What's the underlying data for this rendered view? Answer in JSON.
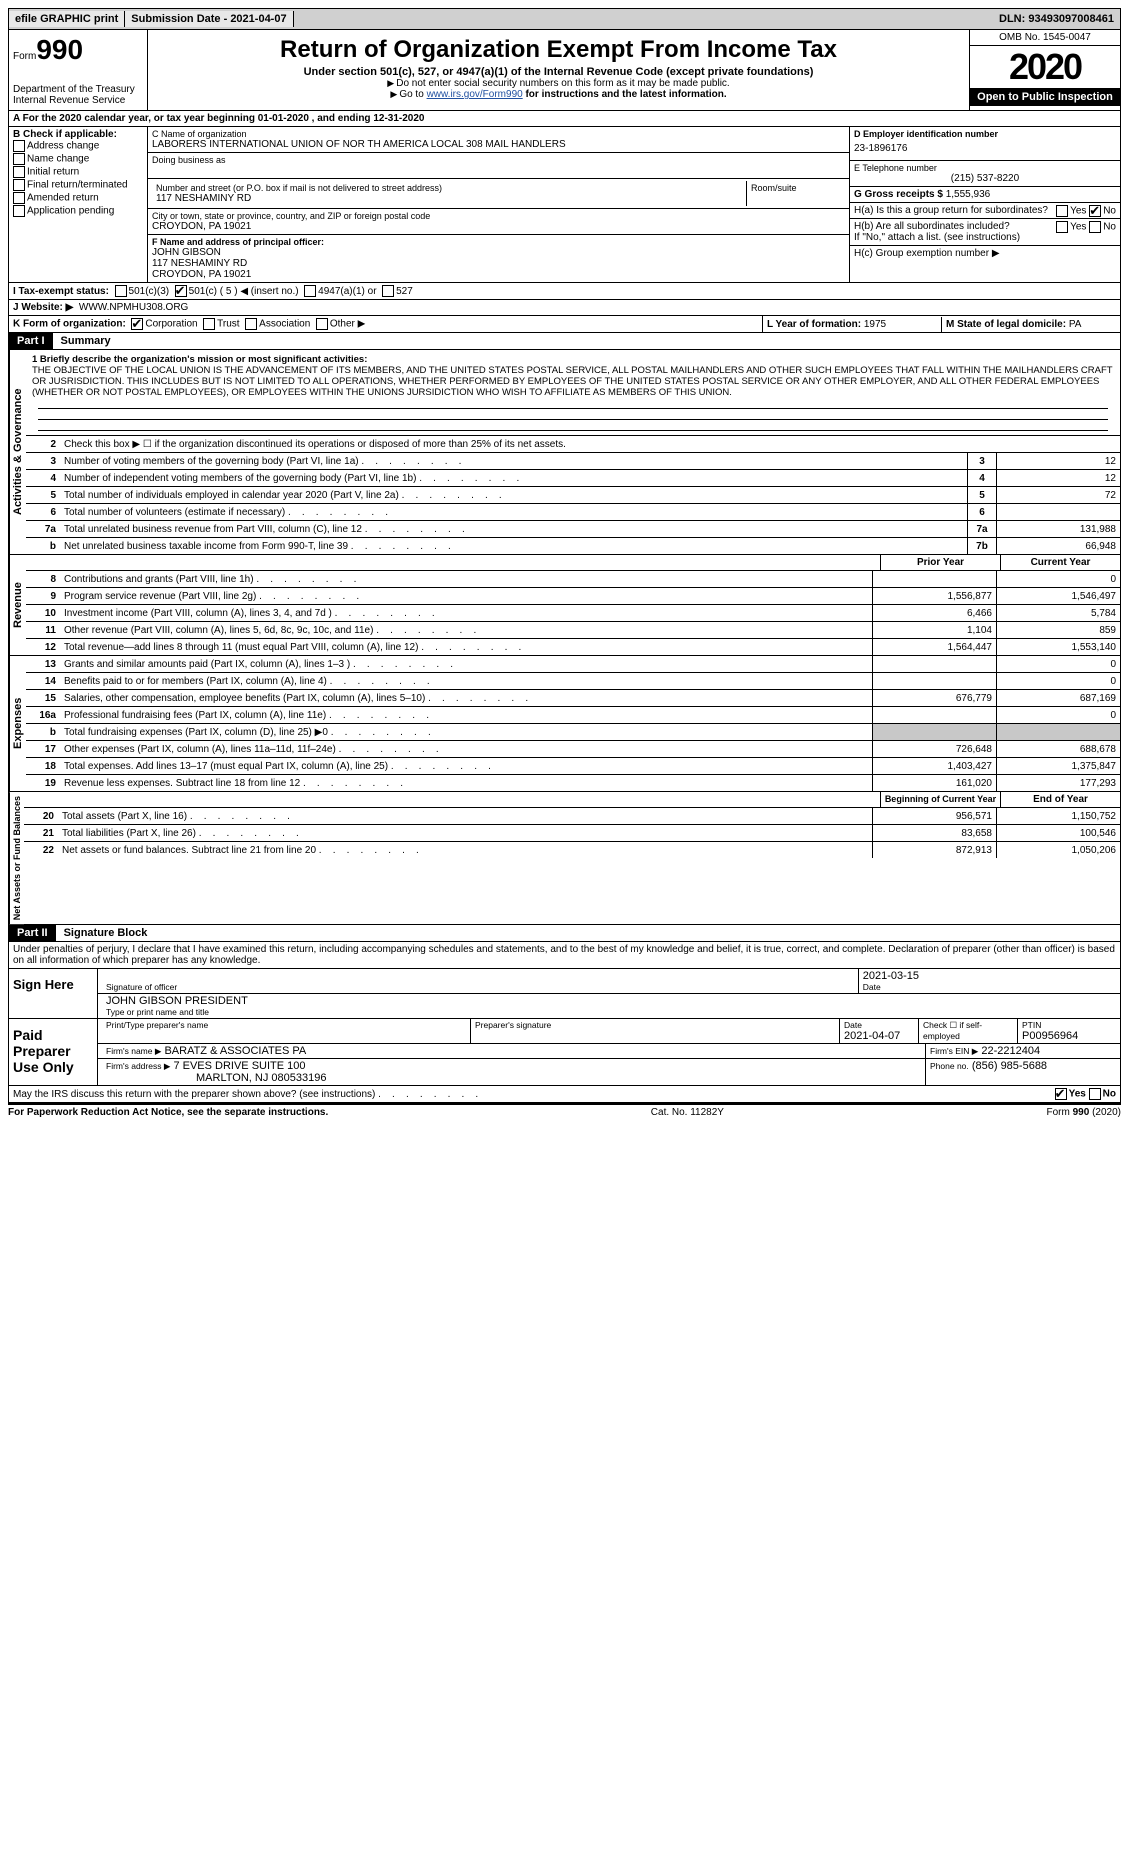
{
  "topbar": {
    "efile": "efile GRAPHIC print",
    "submission": "Submission Date - 2021-04-07",
    "dln": "DLN: 93493097008461"
  },
  "header": {
    "form_word": "Form",
    "form_num": "990",
    "dept": "Department of the Treasury",
    "irs": "Internal Revenue Service",
    "title": "Return of Organization Exempt From Income Tax",
    "subtitle": "Under section 501(c), 527, or 4947(a)(1) of the Internal Revenue Code (except private foundations)",
    "note1": "Do not enter social security numbers on this form as it may be made public.",
    "note2_pre": "Go to ",
    "note2_link": "www.irs.gov/Form990",
    "note2_post": " for instructions and the latest information.",
    "omb": "OMB No. 1545-0047",
    "year": "2020",
    "open": "Open to Public Inspection"
  },
  "rowA": "A   For the 2020 calendar year, or tax year beginning 01-01-2020   , and ending 12-31-2020",
  "colB": {
    "title": "B Check if applicable:",
    "items": [
      "Address change",
      "Name change",
      "Initial return",
      "Final return/terminated",
      "Amended return",
      "Application pending"
    ]
  },
  "colC": {
    "name_lbl": "C Name of organization",
    "name": "LABORERS INTERNATIONAL UNION OF NOR TH AMERICA LOCAL 308 MAIL HANDLERS",
    "dba_lbl": "Doing business as",
    "addr_lbl": "Number and street (or P.O. box if mail is not delivered to street address)",
    "addr": "117 NESHAMINY RD",
    "room_lbl": "Room/suite",
    "city_lbl": "City or town, state or province, country, and ZIP or foreign postal code",
    "city": "CROYDON, PA  19021",
    "officer_lbl": "F  Name and address of principal officer:",
    "officer": "JOHN GIBSON",
    "officer_addr1": "117 NESHAMINY RD",
    "officer_addr2": "CROYDON, PA  19021"
  },
  "colD": {
    "ein_lbl": "D Employer identification number",
    "ein": "23-1896176",
    "phone_lbl": "E Telephone number",
    "phone": "(215) 537-8220",
    "gross_lbl": "G Gross receipts $",
    "gross": "1,555,936"
  },
  "colH": {
    "ha": "H(a)  Is this a group return for subordinates?",
    "hb": "H(b)  Are all subordinates included?",
    "hb_note": "If \"No,\" attach a list. (see instructions)",
    "hc": "H(c)  Group exemption number ▶"
  },
  "rowI": {
    "lbl": "I   Tax-exempt status:",
    "opts": [
      "501(c)(3)",
      "501(c) ( 5 ) ◀ (insert no.)",
      "4947(a)(1) or",
      "527"
    ]
  },
  "rowJ": {
    "lbl": "J   Website: ▶",
    "val": "WWW.NPMHU308.ORG"
  },
  "rowK": {
    "lbl": "K Form of organization:",
    "opts": [
      "Corporation",
      "Trust",
      "Association",
      "Other ▶"
    ]
  },
  "rowL": {
    "lbl": "L Year of formation:",
    "val": "1975"
  },
  "rowM": {
    "lbl": "M State of legal domicile:",
    "val": "PA"
  },
  "part1": {
    "hdr": "Part I",
    "title": "Summary"
  },
  "mission_lbl": "1   Briefly describe the organization's mission or most significant activities:",
  "mission": "THE OBJECTIVE OF THE LOCAL UNION IS THE ADVANCEMENT OF ITS MEMBERS, AND THE UNITED STATES POSTAL SERVICE, ALL POSTAL MAILHANDLERS AND OTHER SUCH EMPLOYEES THAT FALL WITHIN THE MAILHANDLERS CRAFT OR JUSRISDICTION. THIS INCLUDES BUT IS NOT LIMITED TO ALL OPERATIONS, WHETHER PERFORMED BY EMPLOYEES OF THE UNITED STATES POSTAL SERVICE OR ANY OTHER EMPLOYER, AND ALL OTHER FEDERAL EMPLOYEES (WHETHER OR NOT POSTAL EMPLOYEES), OR EMPLOYEES WITHIN THE UNIONS JURSIDICTION WHO WISH TO AFFILIATE AS MEMBERS OF THIS UNION.",
  "line2": "Check this box ▶ ☐ if the organization discontinued its operations or disposed of more than 25% of its net assets.",
  "vert": {
    "act": "Activities & Governance",
    "rev": "Revenue",
    "exp": "Expenses",
    "net": "Net Assets or Fund Balances"
  },
  "gov_lines": [
    {
      "n": "3",
      "d": "Number of voting members of the governing body (Part VI, line 1a)",
      "b": "3",
      "v": "12"
    },
    {
      "n": "4",
      "d": "Number of independent voting members of the governing body (Part VI, line 1b)",
      "b": "4",
      "v": "12"
    },
    {
      "n": "5",
      "d": "Total number of individuals employed in calendar year 2020 (Part V, line 2a)",
      "b": "5",
      "v": "72"
    },
    {
      "n": "6",
      "d": "Total number of volunteers (estimate if necessary)",
      "b": "6",
      "v": ""
    },
    {
      "n": "7a",
      "d": "Total unrelated business revenue from Part VIII, column (C), line 12",
      "b": "7a",
      "v": "131,988"
    },
    {
      "n": "b",
      "d": "Net unrelated business taxable income from Form 990-T, line 39",
      "b": "7b",
      "v": "66,948"
    }
  ],
  "year_hdr": {
    "prior": "Prior Year",
    "current": "Current Year"
  },
  "rev_lines": [
    {
      "n": "8",
      "d": "Contributions and grants (Part VIII, line 1h)",
      "p": "",
      "c": "0"
    },
    {
      "n": "9",
      "d": "Program service revenue (Part VIII, line 2g)",
      "p": "1,556,877",
      "c": "1,546,497"
    },
    {
      "n": "10",
      "d": "Investment income (Part VIII, column (A), lines 3, 4, and 7d )",
      "p": "6,466",
      "c": "5,784"
    },
    {
      "n": "11",
      "d": "Other revenue (Part VIII, column (A), lines 5, 6d, 8c, 9c, 10c, and 11e)",
      "p": "1,104",
      "c": "859"
    },
    {
      "n": "12",
      "d": "Total revenue—add lines 8 through 11 (must equal Part VIII, column (A), line 12)",
      "p": "1,564,447",
      "c": "1,553,140"
    }
  ],
  "exp_lines": [
    {
      "n": "13",
      "d": "Grants and similar amounts paid (Part IX, column (A), lines 1–3 )",
      "p": "",
      "c": "0"
    },
    {
      "n": "14",
      "d": "Benefits paid to or for members (Part IX, column (A), line 4)",
      "p": "",
      "c": "0"
    },
    {
      "n": "15",
      "d": "Salaries, other compensation, employee benefits (Part IX, column (A), lines 5–10)",
      "p": "676,779",
      "c": "687,169"
    },
    {
      "n": "16a",
      "d": "Professional fundraising fees (Part IX, column (A), line 11e)",
      "p": "",
      "c": "0"
    },
    {
      "n": "b",
      "d": "Total fundraising expenses (Part IX, column (D), line 25) ▶0",
      "p": "shaded",
      "c": "shaded"
    },
    {
      "n": "17",
      "d": "Other expenses (Part IX, column (A), lines 11a–11d, 11f–24e)",
      "p": "726,648",
      "c": "688,678"
    },
    {
      "n": "18",
      "d": "Total expenses. Add lines 13–17 (must equal Part IX, column (A), line 25)",
      "p": "1,403,427",
      "c": "1,375,847"
    },
    {
      "n": "19",
      "d": "Revenue less expenses. Subtract line 18 from line 12",
      "p": "161,020",
      "c": "177,293"
    }
  ],
  "net_hdr": {
    "begin": "Beginning of Current Year",
    "end": "End of Year"
  },
  "net_lines": [
    {
      "n": "20",
      "d": "Total assets (Part X, line 16)",
      "p": "956,571",
      "c": "1,150,752"
    },
    {
      "n": "21",
      "d": "Total liabilities (Part X, line 26)",
      "p": "83,658",
      "c": "100,546"
    },
    {
      "n": "22",
      "d": "Net assets or fund balances. Subtract line 21 from line 20",
      "p": "872,913",
      "c": "1,050,206"
    }
  ],
  "part2": {
    "hdr": "Part II",
    "title": "Signature Block"
  },
  "perjury": "Under penalties of perjury, I declare that I have examined this return, including accompanying schedules and statements, and to the best of my knowledge and belief, it is true, correct, and complete. Declaration of preparer (other than officer) is based on all information of which preparer has any knowledge.",
  "sign": {
    "here": "Sign Here",
    "sig_lbl": "Signature of officer",
    "date_lbl": "Date",
    "date": "2021-03-15",
    "name": "JOHN GIBSON PRESIDENT",
    "name_lbl": "Type or print name and title"
  },
  "paid": {
    "title": "Paid Preparer Use Only",
    "h1": "Print/Type preparer's name",
    "h2": "Preparer's signature",
    "h3": "Date",
    "h3v": "2021-04-07",
    "h4": "Check ☐ if self-employed",
    "h5": "PTIN",
    "h5v": "P00956964",
    "firm_lbl": "Firm's name     ▶",
    "firm": "BARATZ & ASSOCIATES PA",
    "ein_lbl": "Firm's EIN ▶",
    "ein": "22-2212404",
    "addr_lbl": "Firm's address ▶",
    "addr1": "7 EVES DRIVE SUITE 100",
    "addr2": "MARLTON, NJ  080533196",
    "phone_lbl": "Phone no.",
    "phone": "(856) 985-5688"
  },
  "discuss": "May the IRS discuss this return with the preparer shown above? (see instructions)",
  "footer": {
    "left": "For Paperwork Reduction Act Notice, see the separate instructions.",
    "mid": "Cat. No. 11282Y",
    "right": "Form 990 (2020)"
  }
}
